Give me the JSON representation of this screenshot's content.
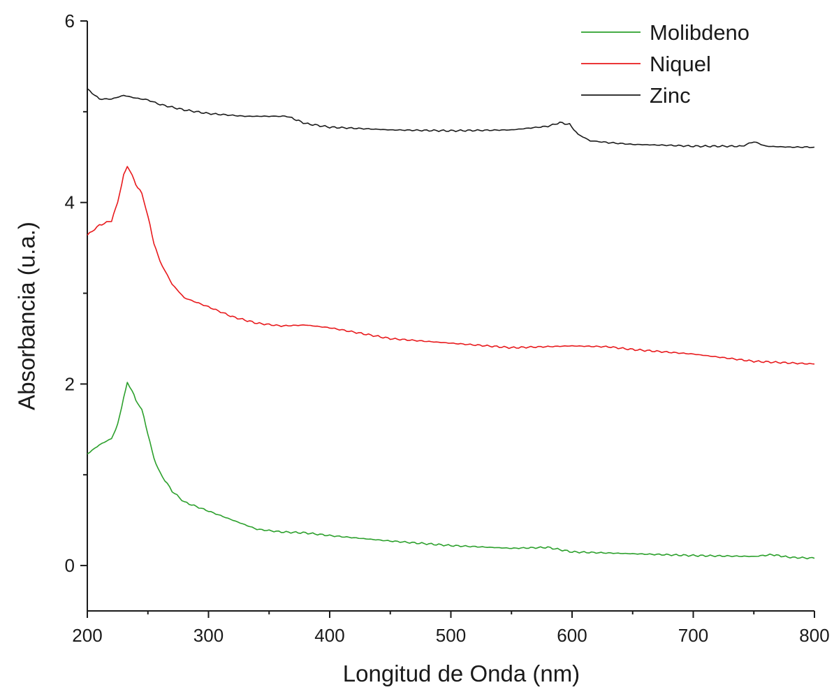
{
  "chart_data": {
    "type": "line",
    "title": "",
    "xlabel": "Longitud de Onda (nm)",
    "ylabel": "Absorbancia (u.a.)",
    "xlim": [
      200,
      800
    ],
    "ylim": [
      -0.5,
      6
    ],
    "x_ticks": [
      200,
      300,
      400,
      500,
      600,
      700,
      800
    ],
    "x_tick_labels": [
      "200",
      "300",
      "400",
      "500",
      "600",
      "700",
      "800"
    ],
    "y_ticks": [
      0,
      2,
      4,
      6
    ],
    "y_tick_labels": [
      "0",
      "2",
      "4",
      "6"
    ],
    "y_minor_ticks": [
      1,
      3,
      5
    ],
    "grid": false,
    "legend_position": "top-right",
    "series": [
      {
        "name": "Molibdeno",
        "color": "#2ca02c",
        "x": [
          200,
          210,
          220,
          225,
          230,
          233,
          237,
          240,
          245,
          250,
          255,
          260,
          270,
          280,
          300,
          320,
          340,
          360,
          380,
          400,
          450,
          500,
          550,
          580,
          600,
          650,
          700,
          750,
          765,
          780,
          800
        ],
        "y": [
          1.23,
          1.33,
          1.4,
          1.55,
          1.85,
          2.01,
          1.93,
          1.82,
          1.72,
          1.45,
          1.18,
          1.02,
          0.82,
          0.7,
          0.6,
          0.5,
          0.4,
          0.37,
          0.36,
          0.33,
          0.27,
          0.22,
          0.19,
          0.2,
          0.15,
          0.13,
          0.11,
          0.1,
          0.12,
          0.09,
          0.08
        ]
      },
      {
        "name": "Niquel",
        "color": "#e8191c",
        "x": [
          200,
          210,
          220,
          225,
          230,
          233,
          237,
          240,
          245,
          250,
          255,
          260,
          270,
          280,
          300,
          320,
          340,
          360,
          380,
          400,
          450,
          500,
          550,
          600,
          630,
          650,
          700,
          750,
          800
        ],
        "y": [
          3.64,
          3.75,
          3.8,
          4.0,
          4.3,
          4.4,
          4.3,
          4.2,
          4.1,
          3.85,
          3.55,
          3.35,
          3.1,
          2.95,
          2.85,
          2.74,
          2.67,
          2.64,
          2.65,
          2.62,
          2.5,
          2.45,
          2.4,
          2.42,
          2.41,
          2.38,
          2.33,
          2.25,
          2.22
        ]
      },
      {
        "name": "Zinc",
        "color": "#1a1a1a",
        "x": [
          200,
          210,
          220,
          230,
          240,
          250,
          260,
          280,
          300,
          330,
          350,
          365,
          380,
          400,
          450,
          500,
          550,
          580,
          590,
          598,
          605,
          615,
          630,
          650,
          680,
          700,
          740,
          750,
          760,
          780,
          800
        ],
        "y": [
          5.25,
          5.14,
          5.14,
          5.18,
          5.15,
          5.13,
          5.08,
          5.02,
          4.98,
          4.95,
          4.95,
          4.95,
          4.87,
          4.83,
          4.8,
          4.79,
          4.8,
          4.84,
          4.88,
          4.86,
          4.75,
          4.68,
          4.66,
          4.64,
          4.63,
          4.62,
          4.62,
          4.67,
          4.62,
          4.61,
          4.61
        ]
      }
    ]
  }
}
